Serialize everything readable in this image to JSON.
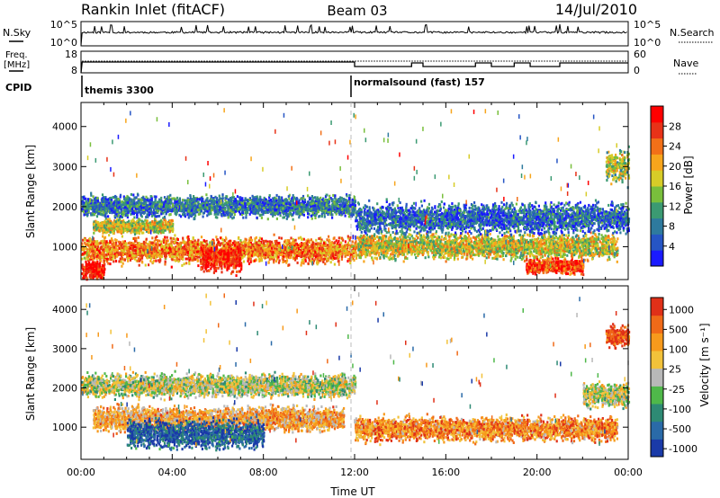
{
  "header": {
    "station": "Rankin Inlet (fitACF)",
    "beam": "Beam 03",
    "date": "14/Jul/2010"
  },
  "top_panels": {
    "nsky_label": "N.Sky",
    "nsky_ticks": [
      "10^5",
      "10^0"
    ],
    "nsearch_label": "N.Search",
    "nsearch_ticks": [
      "10^5",
      "10^0"
    ],
    "freq_label": "Freq.",
    "freq_unit": "[MHz]",
    "freq_ticks": [
      "18",
      "8"
    ],
    "nave_label": "Nave",
    "nave_ticks": [
      "60",
      "0"
    ],
    "cpid_label": "CPID",
    "cpid_segments": [
      {
        "name": "themis 3300",
        "start_hour": 0,
        "end_hour": 12
      },
      {
        "name": "normalsound (fast) 157",
        "start_hour": 12,
        "end_hour": 24
      }
    ]
  },
  "chart_data": [
    {
      "type": "heatmap",
      "name": "power",
      "xlabel": "",
      "ylabel": "Slant Range [km]",
      "xlim": [
        0,
        24
      ],
      "ylim": [
        180,
        4600
      ],
      "yticks": [
        "1000",
        "2000",
        "3000",
        "4000"
      ],
      "colorbar_label": "Power [dB]",
      "colorbar_ticks": [
        "4",
        "8",
        "12",
        "16",
        "20",
        "24",
        "28"
      ],
      "colors": [
        "#1a1aff",
        "#2655c4",
        "#2e7a9e",
        "#3b9a72",
        "#79bf3c",
        "#d7cc28",
        "#f7a51c",
        "#f27018",
        "#e83218",
        "#ff0000"
      ],
      "bands": [
        {
          "range_km": 2000,
          "halfwidth_km": 220,
          "t_start": 0.0,
          "t_end": 12.0,
          "level": 0.25
        },
        {
          "range_km": 1500,
          "halfwidth_km": 140,
          "t_start": 0.5,
          "t_end": 4.0,
          "level": 0.55
        },
        {
          "range_km": 900,
          "halfwidth_km": 260,
          "t_start": 0.0,
          "t_end": 12.0,
          "level": 0.72
        },
        {
          "range_km": 700,
          "halfwidth_km": 300,
          "t_start": 5.2,
          "t_end": 7.0,
          "level": 0.9
        },
        {
          "range_km": 400,
          "halfwidth_km": 200,
          "t_start": 0.0,
          "t_end": 1.0,
          "level": 0.95
        },
        {
          "range_km": 1000,
          "halfwidth_km": 260,
          "t_start": 12.0,
          "t_end": 23.5,
          "level": 0.55
        },
        {
          "range_km": 1700,
          "halfwidth_km": 320,
          "t_start": 12.0,
          "t_end": 24.0,
          "level": 0.2
        },
        {
          "range_km": 500,
          "halfwidth_km": 150,
          "t_start": 19.5,
          "t_end": 22.0,
          "level": 0.85
        },
        {
          "range_km": 3000,
          "halfwidth_km": 350,
          "t_start": 23.0,
          "t_end": 24.0,
          "level": 0.5
        }
      ]
    },
    {
      "type": "heatmap",
      "name": "velocity",
      "xlabel": "Time UT",
      "ylabel": "Slant Range [km]",
      "xlim": [
        0,
        24
      ],
      "ylim": [
        180,
        4600
      ],
      "xticks": [
        "00:00",
        "04:00",
        "08:00",
        "12:00",
        "16:00",
        "20:00",
        "00:00"
      ],
      "yticks": [
        "1000",
        "2000",
        "3000",
        "4000"
      ],
      "colorbar_label": "Velocity [m s⁻¹]",
      "colorbar_ticks": [
        "1000",
        "500",
        "100",
        "25",
        "-25",
        "-100",
        "-500",
        "-1000"
      ],
      "colors": [
        "#1a3aa8",
        "#2a6aa8",
        "#2e8a74",
        "#4fb84a",
        "#b8b8b8",
        "#f2c23a",
        "#f79a1c",
        "#f06a18",
        "#e03018"
      ],
      "bands": [
        {
          "range_km": 2050,
          "halfwidth_km": 240,
          "t_start": 0.0,
          "t_end": 12.0,
          "level": 0.5
        },
        {
          "range_km": 1200,
          "halfwidth_km": 260,
          "t_start": 0.5,
          "t_end": 11.5,
          "level": 0.68
        },
        {
          "range_km": 800,
          "halfwidth_km": 300,
          "t_start": 2.0,
          "t_end": 8.0,
          "level": 0.12
        },
        {
          "range_km": 950,
          "halfwidth_km": 250,
          "t_start": 12.0,
          "t_end": 23.5,
          "level": 0.75
        },
        {
          "range_km": 1800,
          "halfwidth_km": 250,
          "t_start": 22.0,
          "t_end": 24.0,
          "level": 0.5
        },
        {
          "range_km": 3300,
          "halfwidth_km": 220,
          "t_start": 23.0,
          "t_end": 24.0,
          "level": 0.95
        }
      ]
    }
  ]
}
